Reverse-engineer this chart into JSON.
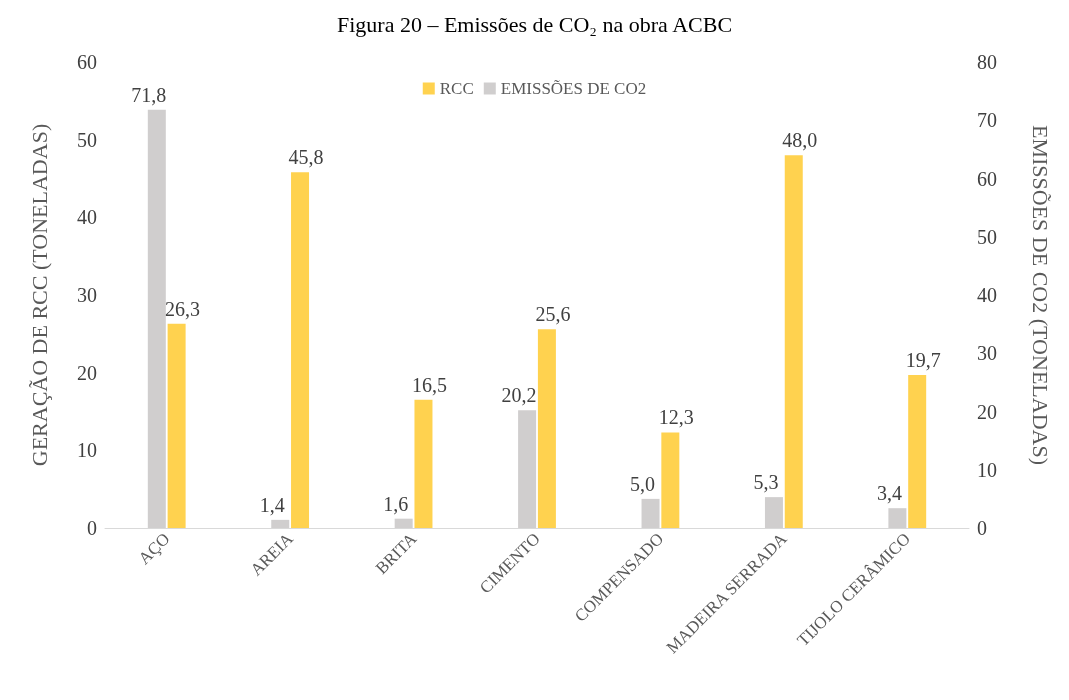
{
  "chart_data": {
    "type": "bar",
    "title": "Figura 20 – Emissões de CO₂ na obra ACBC",
    "categories": [
      "AÇO",
      "AREIA",
      "BRITA",
      "CIMENTO",
      "COMPENSADO",
      "MADEIRA SERRADA",
      "TIJOLO CERÂMICO"
    ],
    "series": [
      {
        "name": "RCC",
        "color": "#ffd24f",
        "values": [
          26.3,
          45.8,
          16.5,
          25.6,
          12.3,
          48.0,
          19.7
        ],
        "value_labels": [
          "26,3",
          "45,8",
          "16,5",
          "25,6",
          "12,3",
          "48,0",
          "19,7"
        ]
      },
      {
        "name": "EMISSÕES DE CO2",
        "color": "#d0cece",
        "axis": "y2",
        "values": [
          71.8,
          1.4,
          1.6,
          20.2,
          5.0,
          5.3,
          3.4
        ],
        "value_labels": [
          "71,8",
          "1,4",
          "1,6",
          "20,2",
          "5,0",
          "5,3",
          "3,4"
        ]
      }
    ],
    "ylabel": "GERAÇÃO DE RCC (TONELADAS)",
    "y2label": "EMISSÕES DE CO2 (TONELADAS)",
    "ylim": [
      0,
      60
    ],
    "yticks": [
      0,
      10,
      20,
      30,
      40,
      50,
      60
    ],
    "y2lim": [
      0,
      80
    ],
    "y2ticks": [
      0,
      10,
      20,
      30,
      40,
      50,
      60,
      70,
      80
    ],
    "grid": false,
    "legend": "top"
  }
}
